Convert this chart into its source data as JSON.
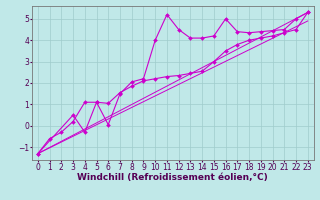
{
  "bg_color": "#c0e8e8",
  "grid_color": "#a0cccc",
  "line_color": "#cc00cc",
  "xlim": [
    -0.5,
    23.5
  ],
  "ylim": [
    -1.6,
    5.6
  ],
  "xlabel": "Windchill (Refroidissement éolien,°C)",
  "xlabel_fontsize": 6.5,
  "tick_fontsize": 5.5,
  "xticks": [
    0,
    1,
    2,
    3,
    4,
    5,
    6,
    7,
    8,
    9,
    10,
    11,
    12,
    13,
    14,
    15,
    16,
    17,
    18,
    19,
    20,
    21,
    22,
    23
  ],
  "yticks": [
    -1,
    0,
    1,
    2,
    3,
    4,
    5
  ],
  "series1_x": [
    0,
    1,
    2,
    3,
    4,
    5,
    6,
    7,
    8,
    9,
    10,
    11,
    12,
    13,
    14,
    15,
    16,
    17,
    18,
    19,
    20,
    21,
    22,
    23
  ],
  "series1_y": [
    -1.3,
    -0.6,
    -0.3,
    0.2,
    1.1,
    1.1,
    0.05,
    1.5,
    2.05,
    2.2,
    4.0,
    5.2,
    4.5,
    4.1,
    4.1,
    4.2,
    5.0,
    4.4,
    4.35,
    4.4,
    4.45,
    4.5,
    5.0,
    5.3
  ],
  "series2_x": [
    0,
    3,
    4,
    5,
    6,
    7,
    8,
    9,
    10,
    11,
    12,
    13,
    14,
    15,
    16,
    17,
    18,
    19,
    20,
    21,
    22,
    23
  ],
  "series2_y": [
    -1.3,
    0.5,
    -0.3,
    1.1,
    1.05,
    1.55,
    1.85,
    2.1,
    2.2,
    2.3,
    2.35,
    2.45,
    2.55,
    3.0,
    3.5,
    3.8,
    4.0,
    4.1,
    4.2,
    4.35,
    4.5,
    5.3
  ],
  "line1_x": [
    0,
    23
  ],
  "line1_y": [
    -1.3,
    5.3
  ],
  "line2_x": [
    0,
    23
  ],
  "line2_y": [
    -1.3,
    4.9
  ]
}
